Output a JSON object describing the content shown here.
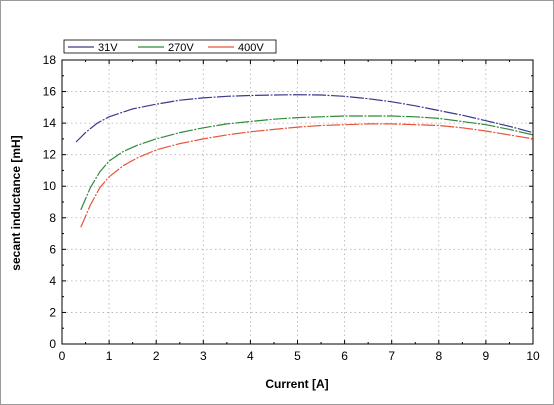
{
  "chart_data": {
    "type": "line",
    "title": "",
    "xlabel": "Current [A]",
    "ylabel": "secant inductance [mH]",
    "xlim": [
      0,
      10
    ],
    "ylim": [
      0,
      18
    ],
    "x_ticks": [
      "0",
      "1",
      "2",
      "3",
      "4",
      "5",
      "6",
      "7",
      "8",
      "9",
      "10"
    ],
    "y_ticks": [
      "0",
      "2",
      "4",
      "6",
      "8",
      "10",
      "12",
      "14",
      "16",
      "18"
    ],
    "grid": true,
    "legend_position": "top-left",
    "series": [
      {
        "name": "31V",
        "color": "#3a3a8c",
        "x": [
          0.3,
          0.5,
          0.75,
          1.0,
          1.5,
          2.0,
          2.5,
          3.0,
          3.5,
          4.0,
          4.5,
          5.0,
          5.5,
          6.0,
          6.5,
          7.0,
          7.5,
          8.0,
          8.5,
          9.0,
          9.5,
          10.0
        ],
        "y": [
          12.8,
          13.4,
          14.0,
          14.4,
          14.9,
          15.2,
          15.45,
          15.6,
          15.7,
          15.75,
          15.78,
          15.8,
          15.78,
          15.7,
          15.55,
          15.35,
          15.1,
          14.8,
          14.5,
          14.15,
          13.8,
          13.4
        ]
      },
      {
        "name": "270V",
        "color": "#2e8b3a",
        "x": [
          0.4,
          0.6,
          0.8,
          1.0,
          1.3,
          1.6,
          2.0,
          2.5,
          3.0,
          3.5,
          4.0,
          4.5,
          5.0,
          5.5,
          6.0,
          6.5,
          7.0,
          7.5,
          8.0,
          8.5,
          9.0,
          9.5,
          10.0
        ],
        "y": [
          8.5,
          9.9,
          10.9,
          11.6,
          12.2,
          12.6,
          13.0,
          13.4,
          13.7,
          13.95,
          14.1,
          14.25,
          14.35,
          14.4,
          14.45,
          14.45,
          14.45,
          14.4,
          14.3,
          14.1,
          13.9,
          13.6,
          13.25
        ]
      },
      {
        "name": "400V",
        "color": "#e8553a",
        "x": [
          0.4,
          0.6,
          0.8,
          1.0,
          1.3,
          1.6,
          2.0,
          2.5,
          3.0,
          3.5,
          4.0,
          4.5,
          5.0,
          5.5,
          6.0,
          6.5,
          7.0,
          7.5,
          8.0,
          8.5,
          9.0,
          9.5,
          10.0
        ],
        "y": [
          7.4,
          8.8,
          9.9,
          10.6,
          11.3,
          11.8,
          12.3,
          12.7,
          13.0,
          13.25,
          13.45,
          13.6,
          13.75,
          13.85,
          13.9,
          13.95,
          13.95,
          13.9,
          13.85,
          13.7,
          13.5,
          13.25,
          13.0
        ]
      }
    ]
  }
}
